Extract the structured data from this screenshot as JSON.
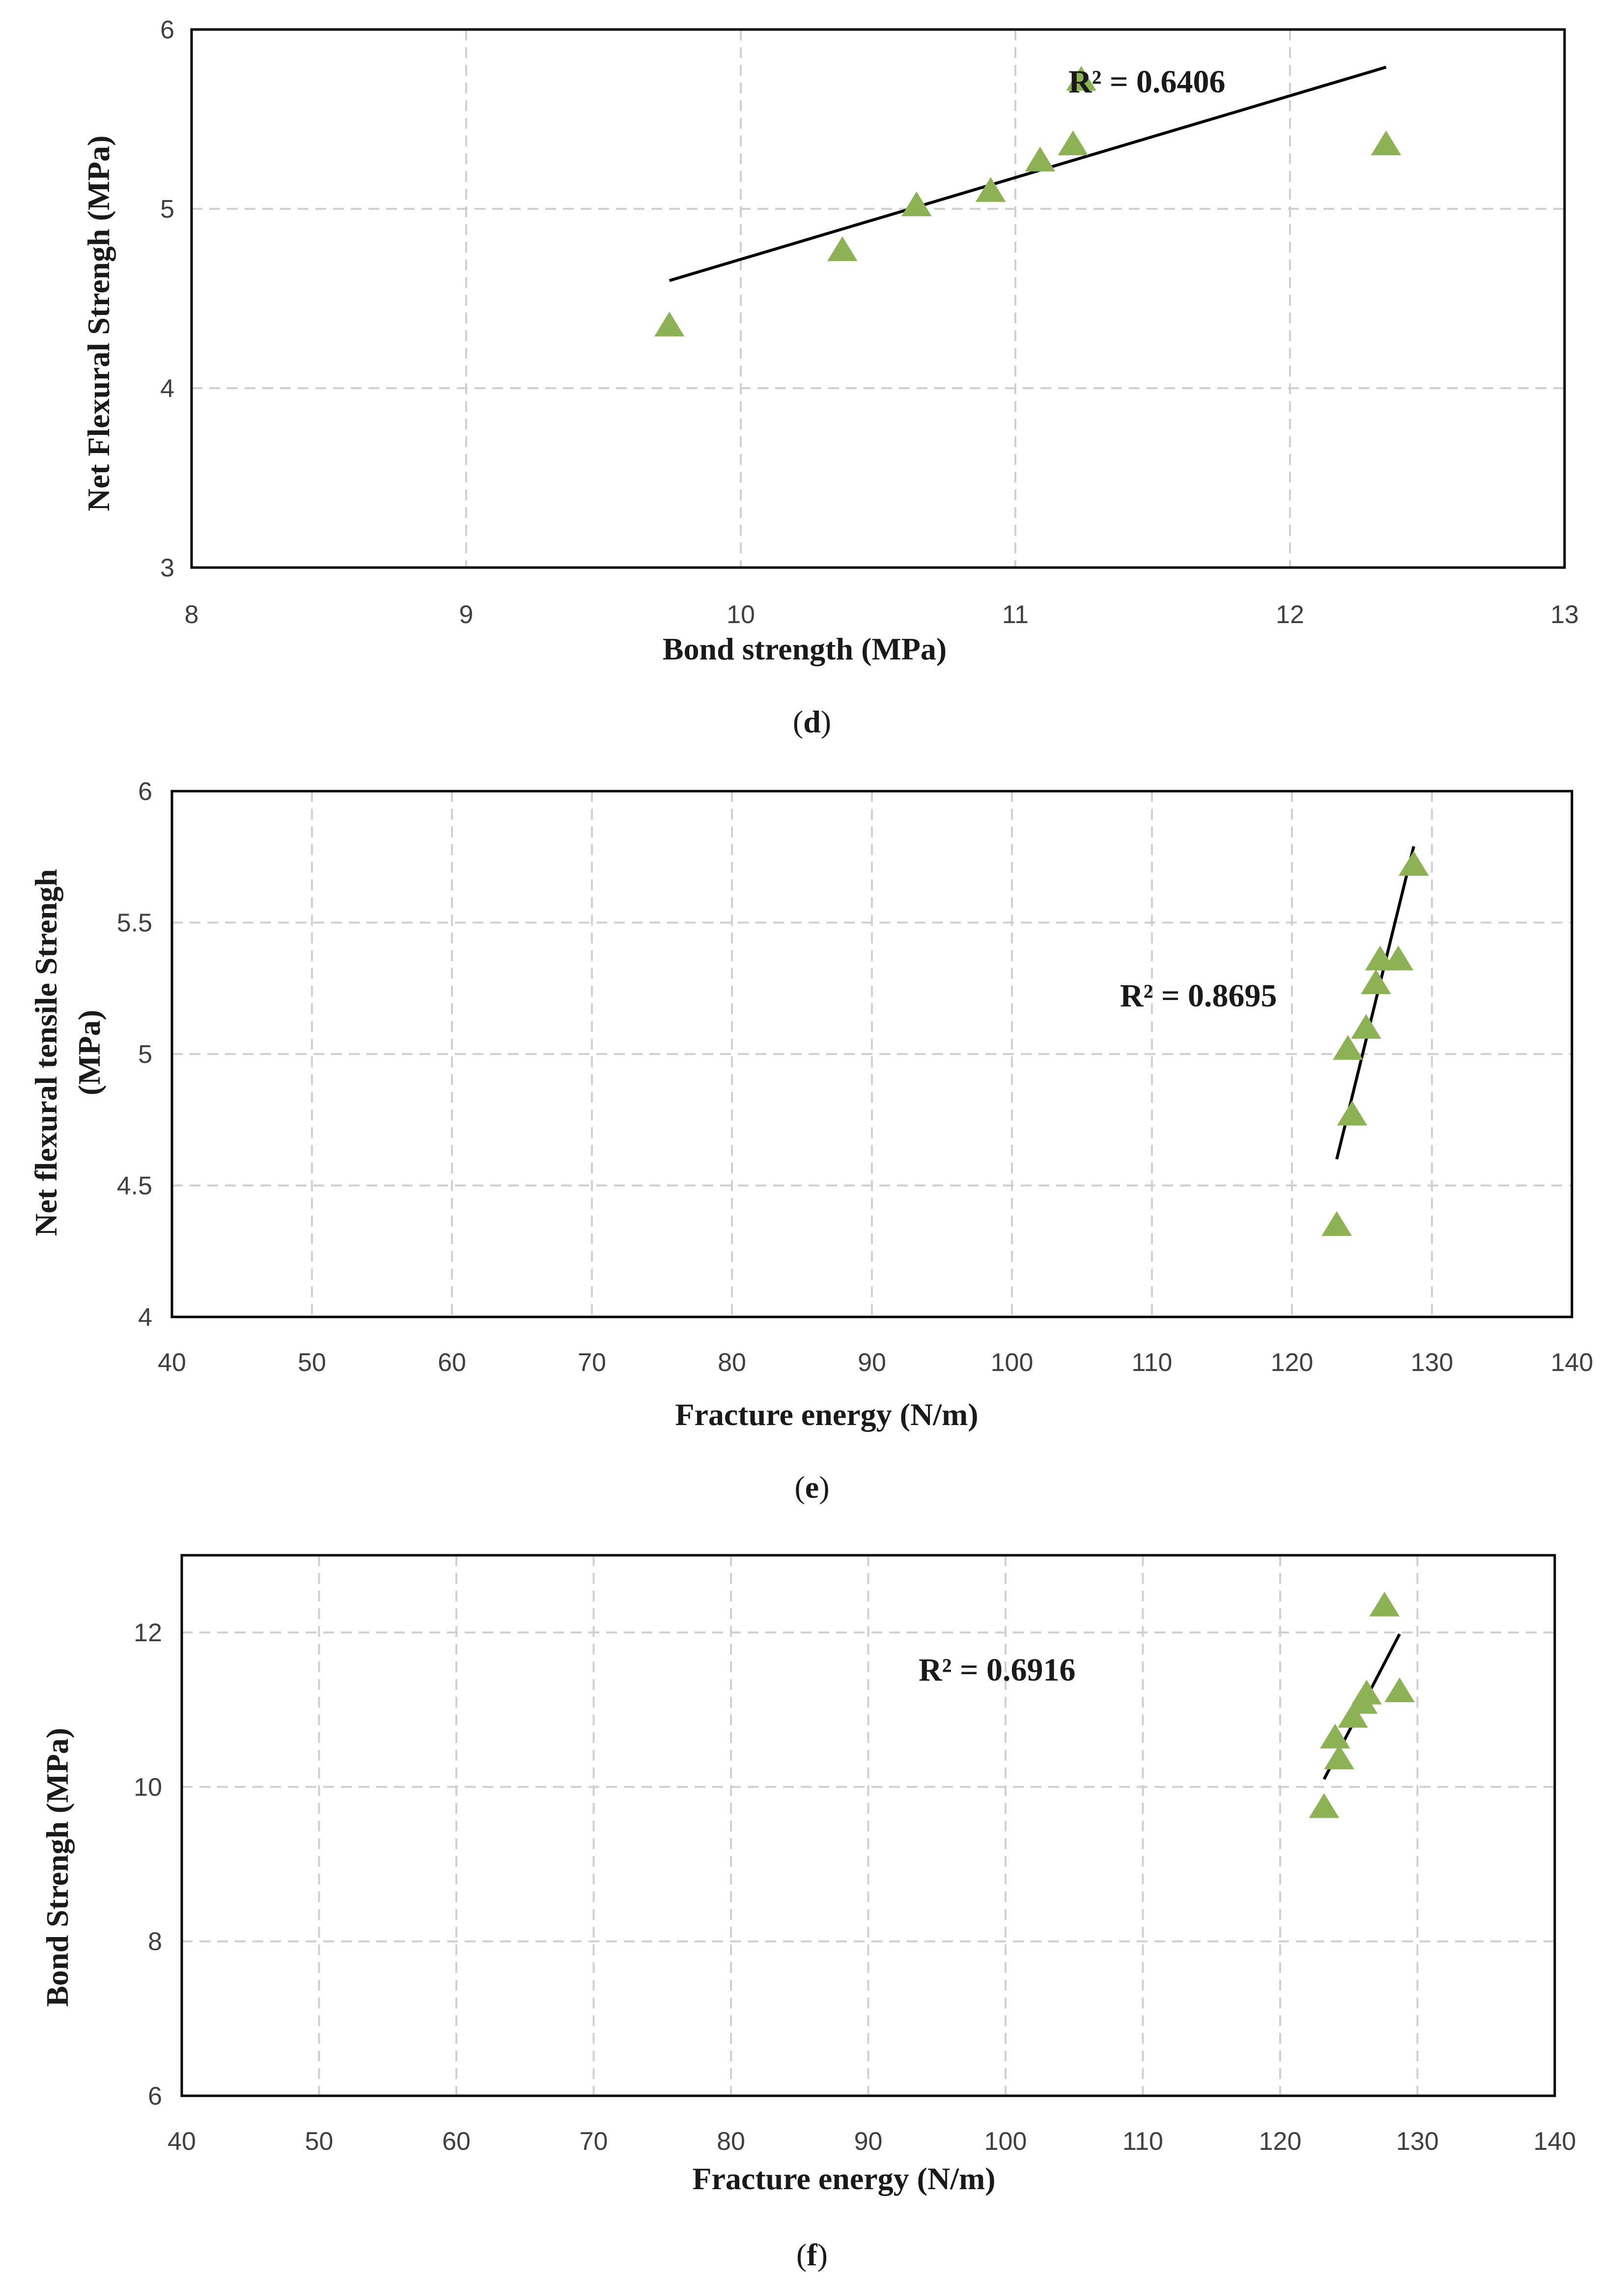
{
  "colors": {
    "marker": "#8DB255",
    "trendline": "#000000",
    "grid": "#d0d0d0"
  },
  "chart_data": [
    {
      "id": "d",
      "type": "scatter",
      "caption_letter": "d",
      "xlabel": "Bond strength (MPa)",
      "ylabel": "Net Flexural Strengh (MPa)",
      "xlim": [
        8,
        13
      ],
      "ylim": [
        3,
        6
      ],
      "xticks": [
        "8",
        "9",
        "10",
        "11",
        "12",
        "13"
      ],
      "yticks": [
        "3",
        "4",
        "5",
        "6"
      ],
      "x": [
        9.74,
        10.37,
        10.64,
        10.91,
        11.09,
        11.21,
        11.24,
        12.35
      ],
      "y": [
        4.35,
        4.77,
        5.02,
        5.1,
        5.27,
        5.36,
        5.72,
        5.36
      ],
      "trendline": {
        "x": [
          9.74,
          12.35
        ],
        "y": [
          4.6,
          5.79
        ]
      },
      "r2_label": "R² = 0.6406"
    },
    {
      "id": "e",
      "type": "scatter",
      "caption_letter": "e",
      "xlabel": "Fracture energy (N/m)",
      "ylabel": [
        "Net flexural tensile Strengh",
        "(MPa)"
      ],
      "xlim": [
        40,
        140
      ],
      "ylim": [
        4,
        6
      ],
      "xticks": [
        "40",
        "50",
        "60",
        "70",
        "80",
        "90",
        "100",
        "110",
        "120",
        "130",
        "140"
      ],
      "yticks": [
        "4",
        "4.5",
        "5",
        "5.5",
        "6"
      ],
      "x": [
        123.2,
        124.0,
        124.3,
        125.3,
        126.0,
        126.3,
        127.6,
        128.7
      ],
      "y": [
        4.35,
        5.02,
        4.77,
        5.1,
        5.27,
        5.36,
        5.36,
        5.72
      ],
      "trendline": {
        "x": [
          123.2,
          128.7
        ],
        "y": [
          4.6,
          5.79
        ]
      },
      "r2_label": "R² = 0.8695"
    },
    {
      "id": "f",
      "type": "scatter",
      "caption_letter": "f",
      "xlabel": "Fracture energy (N/m)",
      "ylabel": "Bond Strengh (MPa)",
      "xlim": [
        40,
        140
      ],
      "ylim": [
        6,
        13
      ],
      "xticks": [
        "40",
        "50",
        "60",
        "70",
        "80",
        "90",
        "100",
        "110",
        "120",
        "130",
        "140"
      ],
      "yticks": [
        "6",
        "8",
        "10",
        "12"
      ],
      "x": [
        123.2,
        124.0,
        124.3,
        125.3,
        126.0,
        126.3,
        127.6,
        128.7
      ],
      "y": [
        9.74,
        10.64,
        10.37,
        10.91,
        11.09,
        11.21,
        12.35,
        11.24
      ],
      "trendline": {
        "x": [
          123.2,
          128.7
        ],
        "y": [
          10.1,
          11.98
        ]
      },
      "r2_label": "R² = 0.6916"
    }
  ]
}
